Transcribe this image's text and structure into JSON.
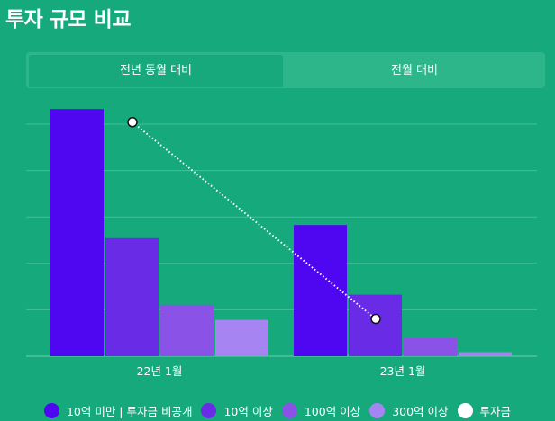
{
  "page": {
    "title": "투자 규모 비교"
  },
  "tabs": [
    {
      "label": "전년 동월 대비",
      "active": true
    },
    {
      "label": "전월 대비",
      "active": false
    }
  ],
  "chart_data": {
    "type": "bar",
    "categories": [
      "22년 1월",
      "23년 1월"
    ],
    "series": [
      {
        "name": "10억 미만 | 투자금 비공개",
        "color": "#4f06f0",
        "values": [
          245,
          130
        ]
      },
      {
        "name": "10억 이상",
        "color": "#692be6",
        "values": [
          117,
          61
        ]
      },
      {
        "name": "100억 이상",
        "color": "#8a52e6",
        "values": [
          51,
          18
        ]
      },
      {
        "name": "300억 이상",
        "color": "#a685f2",
        "values": [
          36,
          4
        ]
      }
    ],
    "line_series": {
      "name": "투자금",
      "color": "#ffffff",
      "style": "dotted",
      "values": [
        232,
        37
      ]
    },
    "ylim": [
      0,
      255
    ],
    "grid": true,
    "legend_position": "bottom"
  }
}
